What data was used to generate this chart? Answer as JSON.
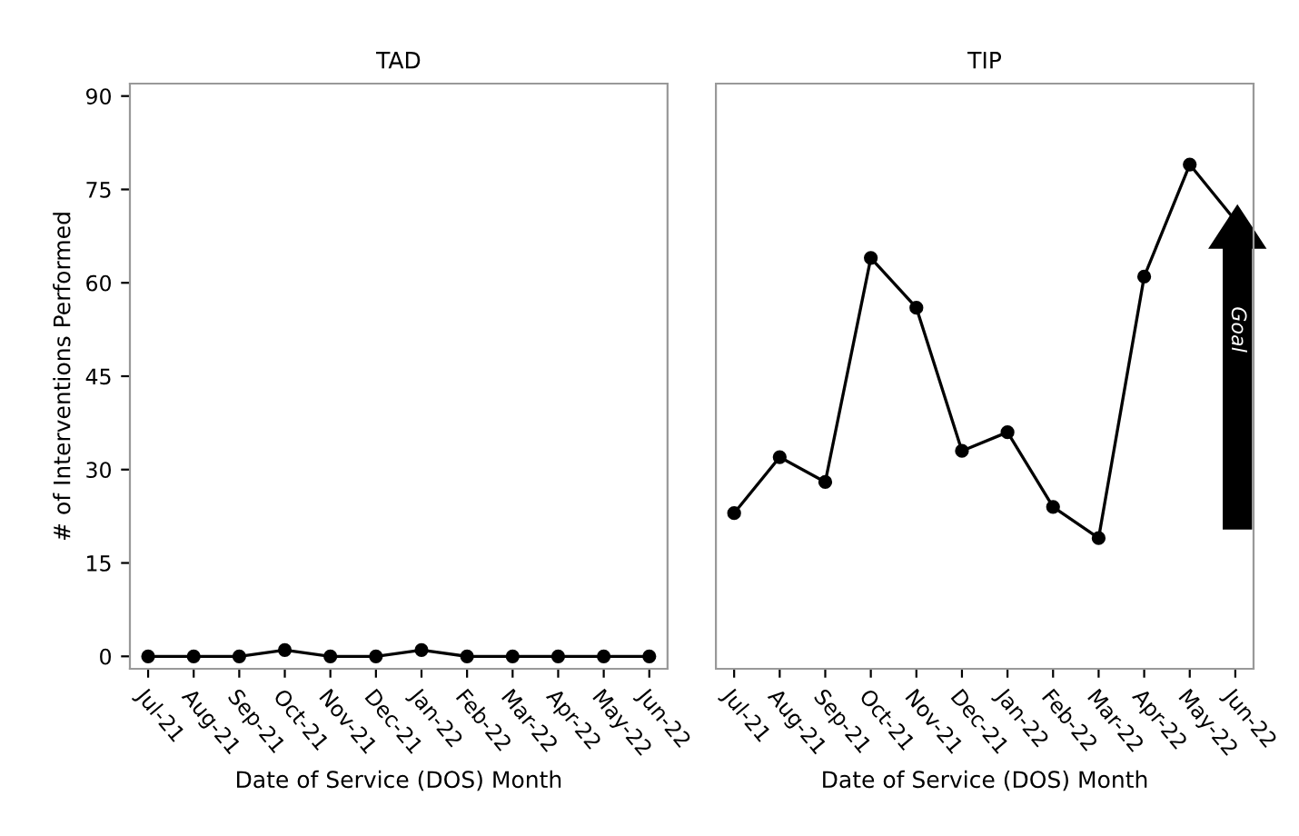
{
  "chart_data": [
    {
      "type": "line",
      "title": "TAD",
      "xlabel": "Date of Service (DOS) Month",
      "ylabel": "# of Interventions Performed",
      "categories": [
        "Jul-21",
        "Aug-21",
        "Sep-21",
        "Oct-21",
        "Nov-21",
        "Dec-21",
        "Jan-22",
        "Feb-22",
        "Mar-22",
        "Apr-22",
        "May-22",
        "Jun-22"
      ],
      "series": [
        {
          "color": "#000000",
          "values": [
            0,
            0,
            0,
            1,
            0,
            0,
            1,
            0,
            0,
            0,
            0,
            0
          ]
        }
      ],
      "ylim": [
        -2,
        92
      ],
      "yticks": [
        0,
        15,
        30,
        45,
        60,
        75,
        90
      ],
      "marker": "circle",
      "line_style": "solid",
      "grid": false
    },
    {
      "type": "line",
      "title": "TIP",
      "xlabel": "Date of Service (DOS) Month",
      "categories": [
        "Jul-21",
        "Aug-21",
        "Sep-21",
        "Oct-21",
        "Nov-21",
        "Dec-21",
        "Jan-22",
        "Feb-22",
        "Mar-22",
        "Apr-22",
        "May-22",
        "Jun-22"
      ],
      "series": [
        {
          "color": "#000000",
          "values": [
            23,
            32,
            28,
            64,
            56,
            33,
            36,
            24,
            19,
            61,
            79,
            70
          ]
        }
      ],
      "ylim": [
        -2,
        92
      ],
      "yticks": [
        0,
        15,
        30,
        45,
        60,
        75,
        90
      ],
      "tick_labels": "x",
      "marker": "circle",
      "line_style": "solid",
      "grid": false,
      "annotations": [
        "Goal"
      ]
    }
  ]
}
